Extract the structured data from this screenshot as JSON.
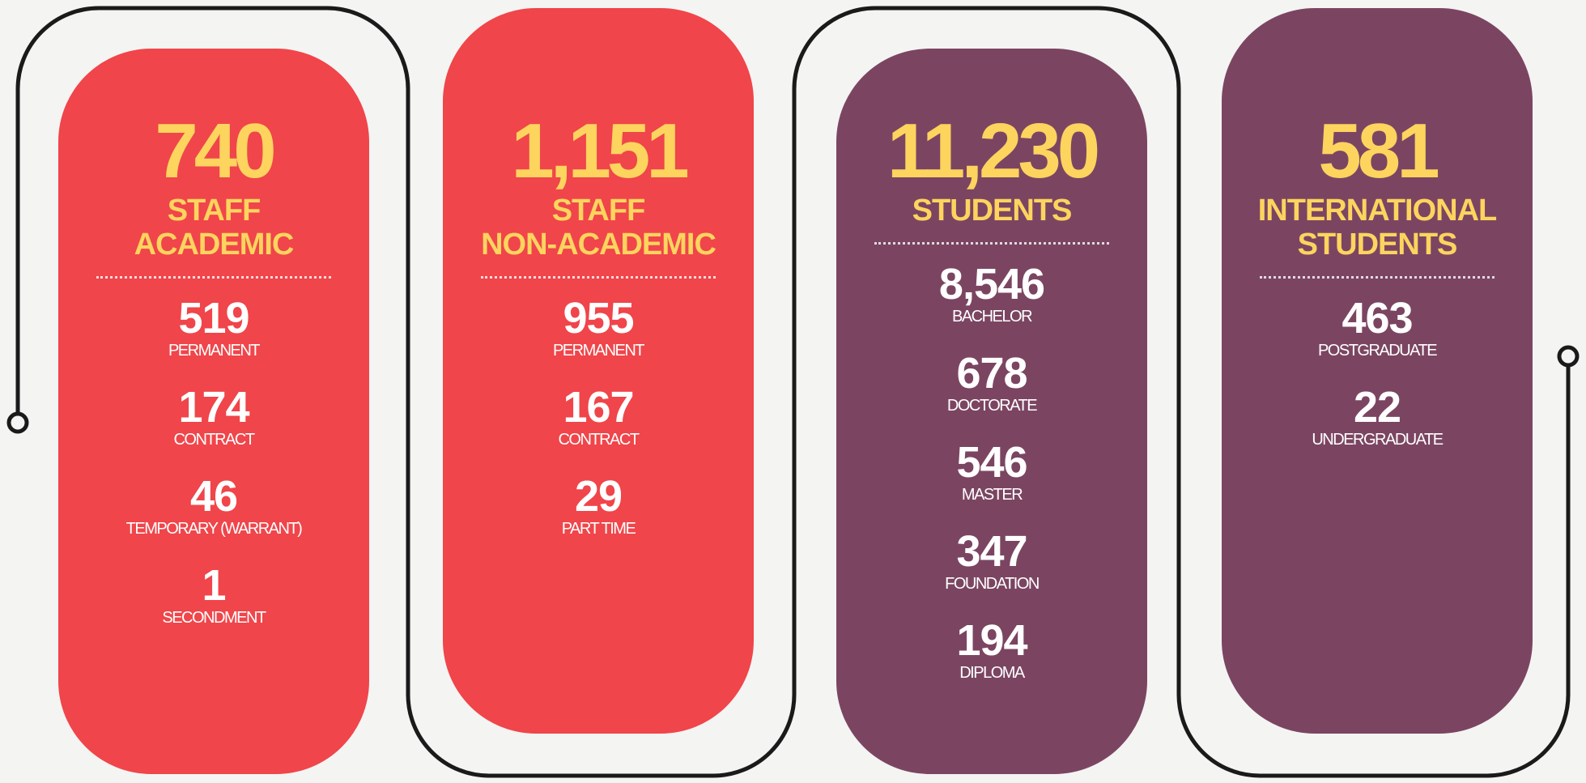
{
  "cards": [
    {
      "total": "740",
      "title": [
        "STAFF",
        "ACADEMIC"
      ],
      "items": [
        {
          "value": "519",
          "label": "PERMANENT"
        },
        {
          "value": "174",
          "label": "CONTRACT"
        },
        {
          "value": "46",
          "label": "TEMPORARY (WARRANT)"
        },
        {
          "value": "1",
          "label": "SECONDMENT"
        }
      ]
    },
    {
      "total": "1,151",
      "title": [
        "STAFF",
        "NON-ACADEMIC"
      ],
      "items": [
        {
          "value": "955",
          "label": "PERMANENT"
        },
        {
          "value": "167",
          "label": "CONTRACT"
        },
        {
          "value": "29",
          "label": "PART TIME"
        }
      ]
    },
    {
      "total": "11,230",
      "title": [
        "STUDENTS"
      ],
      "items": [
        {
          "value": "8,546",
          "label": "BACHELOR"
        },
        {
          "value": "678",
          "label": "DOCTORATE"
        },
        {
          "value": "546",
          "label": "MASTER"
        },
        {
          "value": "347",
          "label": "FOUNDATION"
        },
        {
          "value": "194",
          "label": "DIPLOMA"
        }
      ]
    },
    {
      "total": "581",
      "title": [
        "INTERNATIONAL",
        "STUDENTS"
      ],
      "items": [
        {
          "value": "463",
          "label": "POSTGRADUATE"
        },
        {
          "value": "22",
          "label": "UNDERGRADUATE"
        }
      ]
    }
  ]
}
